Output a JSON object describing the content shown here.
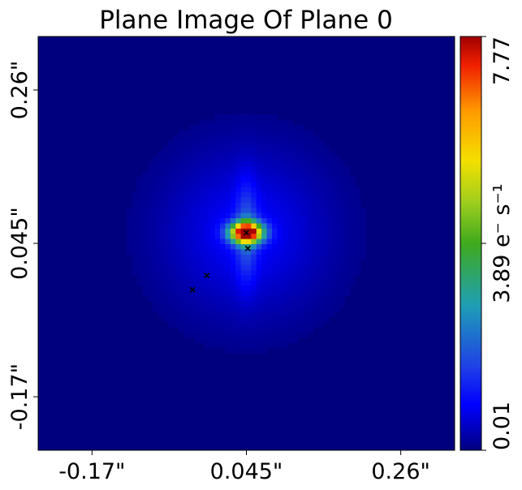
{
  "chart_data": {
    "type": "heatmap",
    "title": "Plane Image Of Plane 0",
    "x_tick_labels": [
      "-0.17\"",
      "0.045\"",
      "0.26\""
    ],
    "y_tick_labels": [
      "0.26\"",
      "0.045\"",
      "-0.17\""
    ],
    "x_ticks": [
      -0.17,
      0.045,
      0.26
    ],
    "y_ticks": [
      0.26,
      0.045,
      -0.17
    ],
    "xlim": [
      -0.245,
      0.335
    ],
    "ylim": [
      -0.245,
      0.335
    ],
    "colorbar": {
      "label": "e⁻ s⁻¹",
      "value_prefix": "3.89",
      "min": 0.01,
      "mid": 3.89,
      "max": 7.77,
      "tick_labels": [
        "0.01",
        "3.89",
        "7.77"
      ],
      "colormap": "jet"
    },
    "peak": {
      "x": 0.045,
      "y": 0.06,
      "value": 7.77
    },
    "markers": [
      {
        "x": 0.045,
        "y": 0.06
      },
      {
        "x": 0.047,
        "y": 0.038
      },
      {
        "x": -0.01,
        "y": 0.0
      },
      {
        "x": -0.03,
        "y": -0.02
      }
    ]
  }
}
